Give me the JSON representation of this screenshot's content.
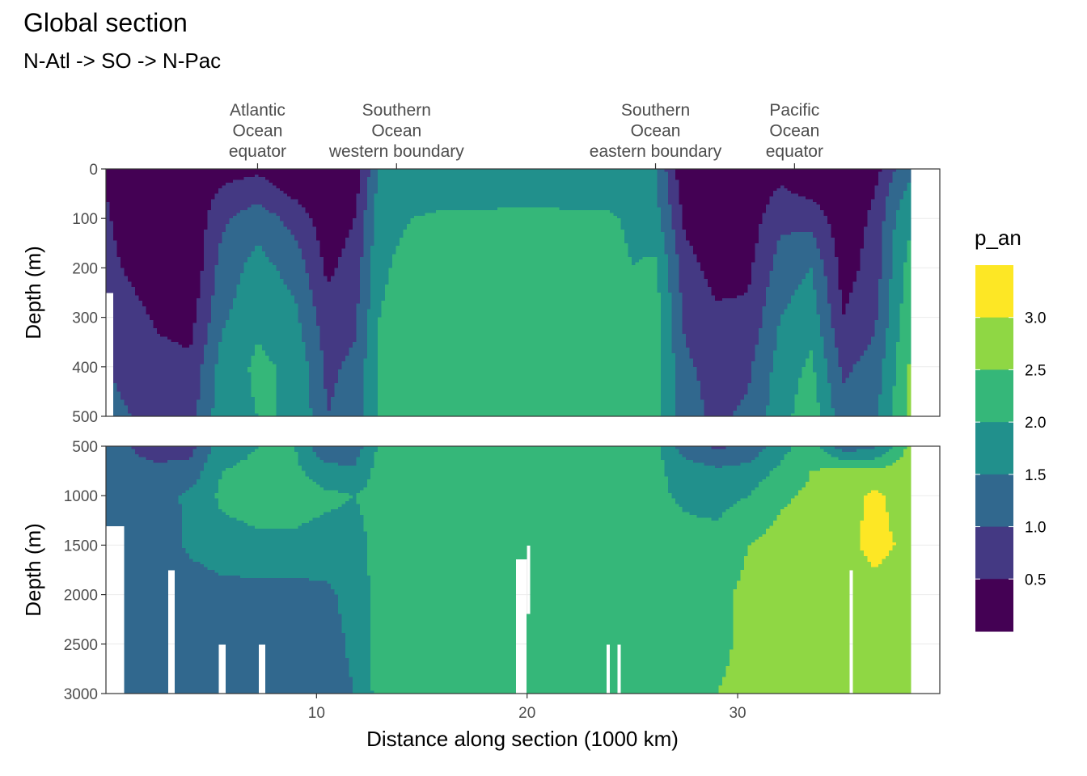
{
  "chart_data": {
    "type": "heatmap",
    "title": "Global section",
    "subtitle": "N-Atl -> SO -> N-Pac",
    "xlabel": "Distance along section (1000 km)",
    "ylabel": "Depth (m)",
    "xlim": [
      0,
      39.6
    ],
    "x_ticks": [
      10,
      20,
      30
    ],
    "panels": [
      {
        "name": "upper",
        "ylim": [
          0,
          500
        ],
        "y_ticks": [
          0,
          100,
          200,
          300,
          400,
          500
        ]
      },
      {
        "name": "lower",
        "ylim": [
          500,
          3000
        ],
        "y_ticks": [
          500,
          1000,
          1500,
          2000,
          2500,
          3000
        ]
      }
    ],
    "region_labels": [
      {
        "x": 7.2,
        "lines": [
          "Atlantic",
          "Ocean",
          "equator"
        ]
      },
      {
        "x": 13.8,
        "lines": [
          "Southern",
          "Ocean",
          "western boundary"
        ]
      },
      {
        "x": 26.1,
        "lines": [
          "Southern",
          "Ocean",
          "eastern boundary"
        ]
      },
      {
        "x": 32.7,
        "lines": [
          "Pacific",
          "Ocean",
          "equator"
        ]
      }
    ],
    "legend": {
      "title": "p_an",
      "breaks": [
        0.5,
        1.0,
        1.5,
        2.0,
        2.5,
        3.0
      ],
      "break_labels": [
        "0.5",
        "1.0",
        "1.5",
        "2.0",
        "2.5",
        "3.0"
      ],
      "colors": [
        "#440154",
        "#443983",
        "#31688E",
        "#21908C",
        "#35B779",
        "#8FD744",
        "#FDE725"
      ]
    },
    "field": {
      "x_nodes": [
        0,
        1.2,
        2.5,
        4.0,
        5.5,
        7.2,
        9.0,
        10.5,
        11.8,
        13.0,
        14.5,
        16.0,
        18.0,
        20.0,
        22.0,
        23.8,
        25.0,
        26.1,
        27.5,
        29.0,
        30.5,
        32.0,
        33.5,
        35.0,
        36.5,
        37.5,
        38.5,
        39.6
      ],
      "depths": [
        0,
        50,
        100,
        200,
        300,
        400,
        500,
        750,
        1000,
        1500,
        2000,
        2500,
        3000
      ],
      "levels": [
        [
          0.3,
          0.05,
          0.05,
          0.05,
          0.3,
          0.4,
          0.1,
          0.05,
          0.1,
          1.6,
          1.7,
          1.7,
          1.7,
          1.7,
          1.7,
          1.7,
          1.6,
          1.5,
          0.05,
          0.05,
          0.05,
          0.3,
          0.1,
          0.05,
          0.3,
          1.0,
          1.5,
          1.5
        ],
        [
          0.5,
          0.05,
          0.05,
          0.05,
          0.6,
          0.8,
          0.4,
          0.1,
          0.3,
          1.7,
          1.8,
          1.8,
          1.8,
          1.8,
          1.8,
          1.8,
          1.7,
          1.6,
          0.2,
          0.05,
          0.1,
          0.6,
          0.4,
          0.1,
          0.5,
          1.3,
          1.8,
          2.0
        ],
        [
          0.6,
          0.1,
          0.05,
          0.05,
          0.9,
          1.3,
          0.8,
          0.2,
          0.5,
          1.8,
          2.0,
          2.1,
          2.1,
          2.2,
          2.1,
          2.1,
          1.9,
          1.7,
          0.4,
          0.1,
          0.2,
          0.9,
          0.8,
          0.2,
          0.6,
          1.5,
          2.1,
          2.5
        ],
        [
          0.7,
          0.4,
          0.1,
          0.05,
          1.2,
          1.7,
          1.3,
          0.4,
          0.7,
          1.9,
          2.2,
          2.3,
          2.3,
          2.3,
          2.3,
          2.2,
          2.0,
          2.1,
          0.7,
          0.3,
          0.4,
          1.2,
          1.5,
          0.3,
          0.7,
          1.7,
          2.4,
          2.8
        ],
        [
          0.8,
          0.7,
          0.4,
          0.3,
          1.4,
          1.9,
          1.6,
          0.7,
          0.9,
          2.0,
          2.3,
          2.3,
          2.3,
          2.3,
          2.3,
          2.3,
          2.1,
          2.2,
          0.9,
          0.6,
          0.6,
          1.5,
          1.8,
          0.5,
          0.9,
          1.8,
          2.6,
          2.9
        ],
        [
          1.0,
          0.9,
          0.7,
          0.6,
          1.7,
          2.1,
          1.9,
          0.9,
          1.1,
          2.1,
          2.3,
          2.3,
          2.3,
          2.3,
          2.3,
          2.3,
          2.2,
          2.2,
          1.1,
          0.8,
          0.9,
          1.7,
          2.1,
          0.9,
          1.2,
          2.0,
          2.8,
          3.0
        ],
        [
          1.1,
          1.0,
          0.8,
          0.8,
          1.8,
          2.0,
          2.0,
          1.0,
          1.2,
          2.1,
          2.3,
          2.3,
          2.3,
          2.3,
          2.3,
          2.3,
          2.2,
          2.2,
          1.2,
          0.9,
          1.1,
          1.8,
          2.3,
          1.2,
          1.4,
          2.1,
          2.9,
          3.1
        ],
        [
          1.1,
          1.1,
          1.1,
          1.2,
          2.0,
          2.1,
          2.1,
          1.7,
          1.6,
          2.2,
          2.3,
          2.3,
          2.3,
          2.3,
          2.3,
          2.3,
          2.2,
          2.1,
          1.8,
          1.6,
          1.7,
          2.1,
          2.5,
          2.6,
          2.6,
          2.7,
          2.9,
          3.1
        ],
        [
          1.2,
          1.2,
          1.3,
          1.6,
          2.1,
          2.2,
          2.2,
          2.1,
          2.0,
          2.2,
          2.3,
          2.3,
          2.3,
          2.3,
          2.3,
          2.3,
          2.2,
          2.1,
          1.9,
          1.8,
          2.0,
          2.4,
          2.6,
          2.8,
          3.1,
          2.9,
          2.8,
          2.8
        ],
        [
          1.1,
          1.1,
          1.2,
          1.6,
          1.8,
          1.9,
          1.9,
          1.8,
          1.8,
          2.2,
          2.3,
          2.3,
          2.3,
          2.3,
          2.3,
          2.3,
          2.3,
          2.3,
          2.2,
          2.2,
          2.5,
          2.7,
          2.8,
          2.9,
          3.1,
          3.0,
          2.8,
          2.7
        ],
        [
          1.0,
          1.0,
          1.1,
          1.2,
          1.3,
          1.3,
          1.3,
          1.4,
          1.7,
          2.2,
          2.3,
          2.3,
          2.3,
          2.3,
          2.3,
          2.3,
          2.3,
          2.3,
          2.3,
          2.4,
          2.6,
          2.7,
          2.7,
          2.8,
          2.9,
          2.8,
          2.7,
          2.7
        ],
        [
          1.0,
          1.0,
          1.1,
          1.1,
          1.2,
          1.2,
          1.2,
          1.3,
          1.6,
          2.2,
          2.3,
          2.3,
          2.3,
          2.3,
          2.3,
          2.3,
          2.3,
          2.3,
          2.3,
          2.4,
          2.6,
          2.7,
          2.7,
          2.7,
          2.7,
          2.7,
          2.7,
          2.7
        ],
        [
          1.0,
          1.0,
          1.1,
          1.1,
          1.2,
          1.2,
          1.2,
          1.3,
          1.5,
          2.2,
          2.3,
          2.3,
          2.3,
          2.3,
          2.3,
          2.3,
          2.3,
          2.3,
          2.4,
          2.5,
          2.6,
          2.7,
          2.7,
          2.7,
          2.7,
          2.7,
          2.7,
          2.7
        ]
      ],
      "missing": [
        {
          "x": [
            0,
            0.9
          ],
          "depth": [
            1300,
            3000
          ]
        },
        {
          "x": [
            0,
            0.35
          ],
          "depth": [
            250,
            500
          ]
        },
        {
          "x": [
            3.0,
            3.3
          ],
          "depth": [
            1750,
            3000
          ]
        },
        {
          "x": [
            5.3,
            5.6
          ],
          "depth": [
            2500,
            3000
          ]
        },
        {
          "x": [
            7.3,
            7.6
          ],
          "depth": [
            2500,
            3000
          ]
        },
        {
          "x": [
            19.4,
            19.9
          ],
          "depth": [
            1650,
            3000
          ]
        },
        {
          "x": [
            20.0,
            20.2
          ],
          "depth": [
            1500,
            2200
          ]
        },
        {
          "x": [
            23.8,
            24.0
          ],
          "depth": [
            2500,
            3000
          ]
        },
        {
          "x": [
            24.2,
            24.4
          ],
          "depth": [
            2500,
            3000
          ]
        },
        {
          "x": [
            35.3,
            35.5
          ],
          "depth": [
            1750,
            3000
          ]
        },
        {
          "x": [
            38.3,
            39.6
          ],
          "depth": [
            0,
            3000
          ]
        }
      ]
    }
  }
}
